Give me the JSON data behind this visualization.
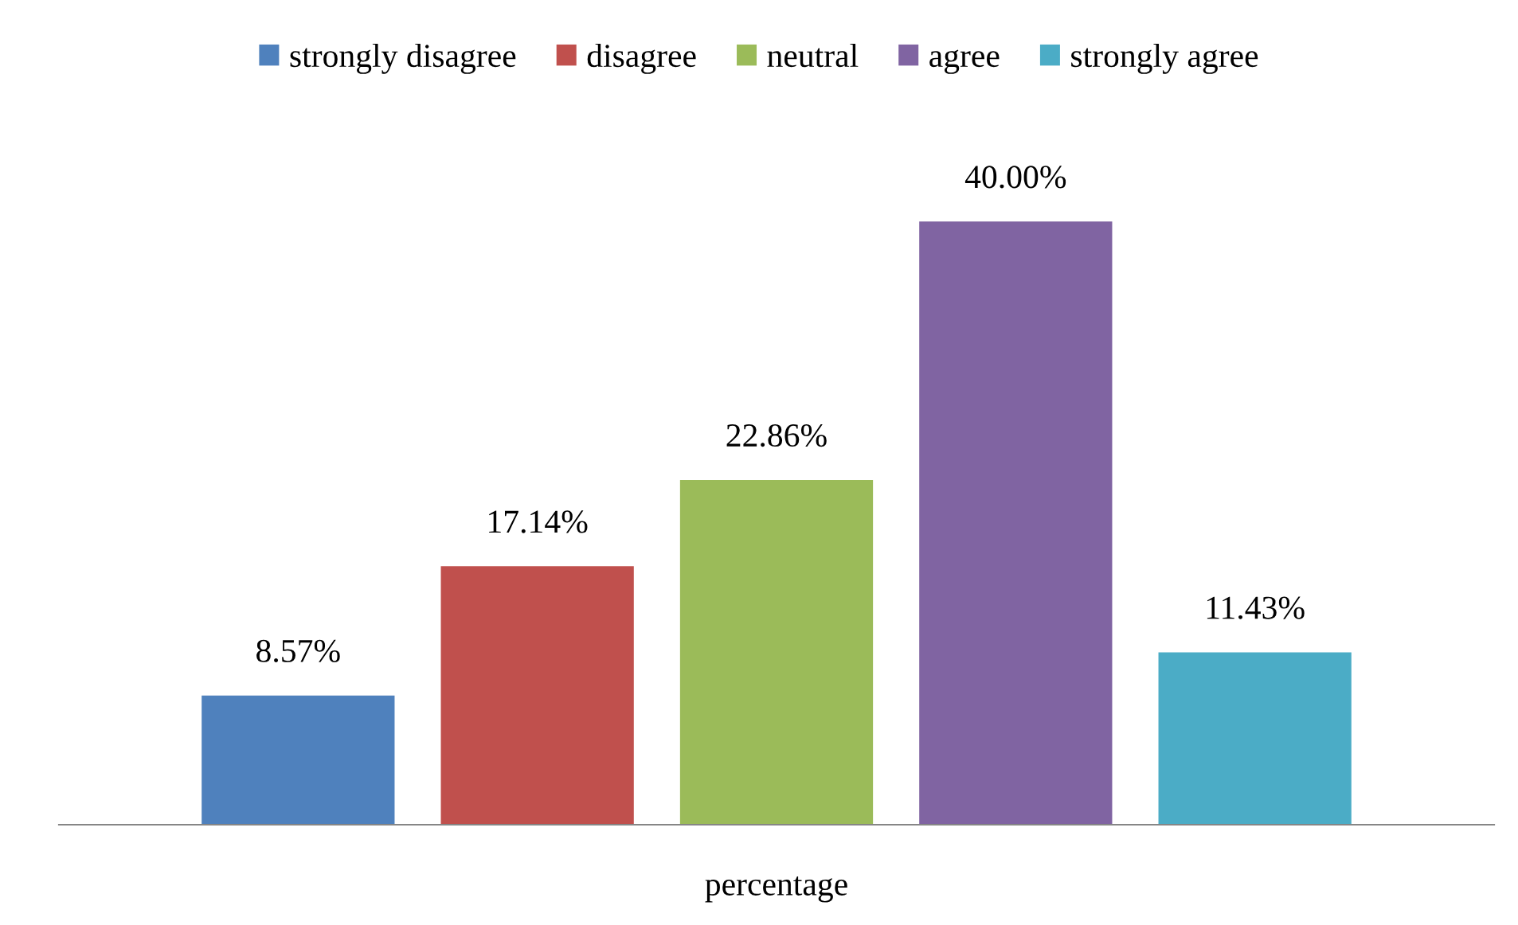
{
  "chart_data": {
    "type": "bar",
    "xlabel": "percentage",
    "categories": [
      null
    ],
    "legend": "top",
    "grid": false,
    "series": [
      {
        "name": "strongly disagree",
        "color": "#4f81bd",
        "values": [
          8.57
        ],
        "value_labels": [
          "8.57%"
        ]
      },
      {
        "name": "disagree",
        "color": "#c0504d",
        "values": [
          17.14
        ],
        "value_labels": [
          "17.14%"
        ]
      },
      {
        "name": "neutral",
        "color": "#9bbb59",
        "values": [
          22.86
        ],
        "value_labels": [
          "22.86%"
        ]
      },
      {
        "name": "agree",
        "color": "#8064a2",
        "values": [
          40.0
        ],
        "value_labels": [
          "40.00%"
        ]
      },
      {
        "name": "strongly agree",
        "color": "#4bacc6",
        "values": [
          11.43
        ],
        "value_labels": [
          "11.43%"
        ]
      }
    ]
  }
}
